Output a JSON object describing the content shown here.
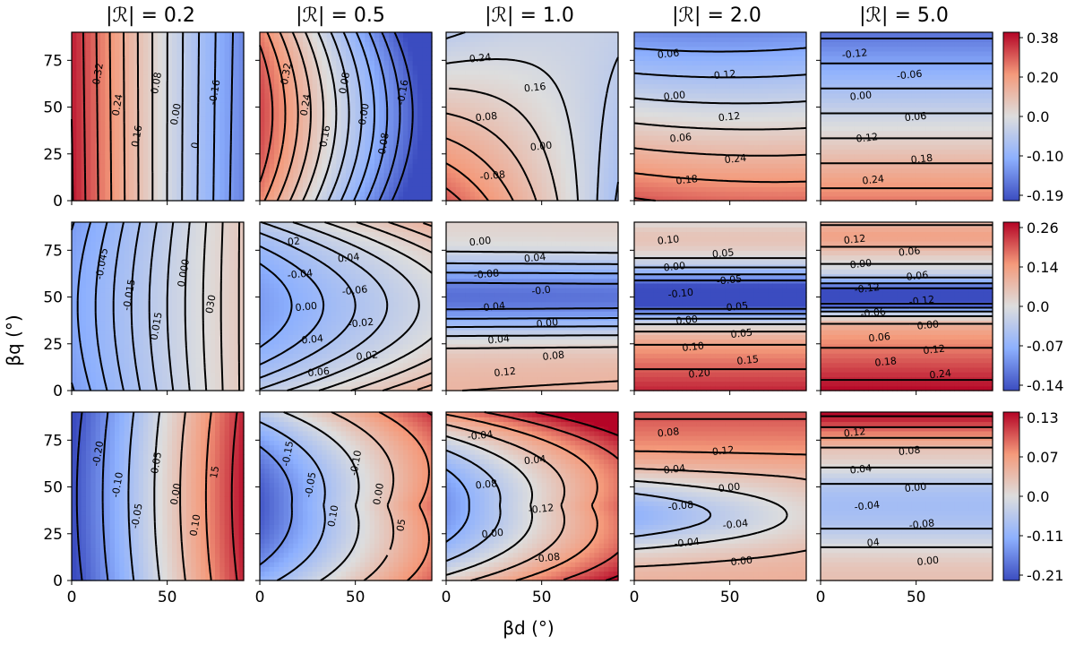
{
  "chart_data": {
    "type": "heatmap",
    "layout": "3 rows x 5 columns of filled contour maps with black contour lines (dashed = negative, solid = positive)",
    "colormap": "coolwarm",
    "column_titles": [
      "|ℛ| = 0.2",
      "|ℛ| = 0.5",
      "|ℛ| = 1.0",
      "|ℛ| = 2.0",
      "|ℛ| = 5.0"
    ],
    "xlabel": "βd (°)",
    "ylabel": "βq (°)",
    "xlim": [
      0,
      90
    ],
    "ylim": [
      0,
      90
    ],
    "x_ticks": [
      "0",
      "50"
    ],
    "y_ticks": [
      "0",
      "25",
      "50",
      "75"
    ],
    "colorbars": [
      {
        "row": 1,
        "ticks": [
          "0.38",
          "0.20",
          "0.0",
          "-0.10",
          "-0.19"
        ],
        "min": -0.19,
        "max": 0.38
      },
      {
        "row": 2,
        "ticks": [
          "0.26",
          "0.14",
          "0.0",
          "-0.07",
          "-0.14"
        ],
        "min": -0.14,
        "max": 0.26
      },
      {
        "row": 3,
        "ticks": [
          "0.13",
          "0.07",
          "0.0",
          "-0.11",
          "-0.21"
        ],
        "min": -0.21,
        "max": 0.13
      }
    ],
    "panels": [
      {
        "row": 1,
        "col": 1,
        "contour_labels": [
          "0.32",
          "0.24",
          "0.16",
          "0.08",
          "0.00",
          "0",
          "-0.16"
        ]
      },
      {
        "row": 1,
        "col": 2,
        "contour_labels": [
          "0.32",
          "0.24",
          "0.16",
          "0.08",
          "0.00",
          "-0.08",
          "-0.16"
        ]
      },
      {
        "row": 1,
        "col": 3,
        "contour_labels": [
          "0.24",
          "0.16",
          "0.08",
          "0.00",
          "-0.08"
        ]
      },
      {
        "row": 1,
        "col": 4,
        "contour_labels": [
          "0.06",
          "-0.12",
          "0.00",
          "0.12",
          "0.06",
          "0.24",
          "0.18"
        ]
      },
      {
        "row": 1,
        "col": 5,
        "contour_labels": [
          "-0.12",
          "-0.06",
          "0.00",
          "0.06",
          "0.12",
          "0.18",
          "0.24"
        ]
      },
      {
        "row": 2,
        "col": 1,
        "contour_labels": [
          "-0.045",
          "-0.015",
          "0.015",
          "0.000",
          "030"
        ]
      },
      {
        "row": 2,
        "col": 2,
        "contour_labels": [
          "02",
          "0.04",
          "-0.04",
          "-0.06",
          "0.00",
          "-0.02",
          "0.04",
          "0.02",
          "0.06"
        ]
      },
      {
        "row": 2,
        "col": 3,
        "contour_labels": [
          "0.00",
          "0.04",
          "-0.08",
          "-0.0",
          "-0.04",
          "0.00",
          "0.04",
          "0.08",
          "0.12"
        ]
      },
      {
        "row": 2,
        "col": 4,
        "contour_labels": [
          "0.10",
          "0.05",
          "0.00",
          "-0.05",
          "-0.10",
          "-0.05",
          "0.00",
          "0.05",
          "0.10",
          "0.15",
          "0.20"
        ]
      },
      {
        "row": 2,
        "col": 5,
        "contour_labels": [
          "0.12",
          "0.06",
          "0.00",
          "-0.06",
          "-0.12",
          "-0.12",
          "-0.06",
          "0.00",
          "0.06",
          "0.12",
          "0.18",
          "0.24"
        ]
      },
      {
        "row": 3,
        "col": 1,
        "contour_labels": [
          "-0.20",
          "-0.10",
          "-0.05",
          "0.05",
          "0.00",
          "0.10",
          "15"
        ]
      },
      {
        "row": 3,
        "col": 2,
        "contour_labels": [
          "-0.15",
          "-0.05",
          "0.10",
          "-0.10",
          "0.00",
          "05"
        ]
      },
      {
        "row": 3,
        "col": 3,
        "contour_labels": [
          "-0.04",
          "0.04",
          "0.08",
          "-0.12",
          "0.00",
          "-0.08"
        ]
      },
      {
        "row": 3,
        "col": 4,
        "contour_labels": [
          "0.08",
          "0.12",
          "0.04",
          "0.00",
          "-0.08",
          "-0.04",
          "-0.04",
          "0.00"
        ]
      },
      {
        "row": 3,
        "col": 5,
        "contour_labels": [
          "0.12",
          "0.08",
          "0.04",
          "0.00",
          "-0.04",
          "-0.08",
          "04",
          "0.00"
        ]
      }
    ]
  }
}
